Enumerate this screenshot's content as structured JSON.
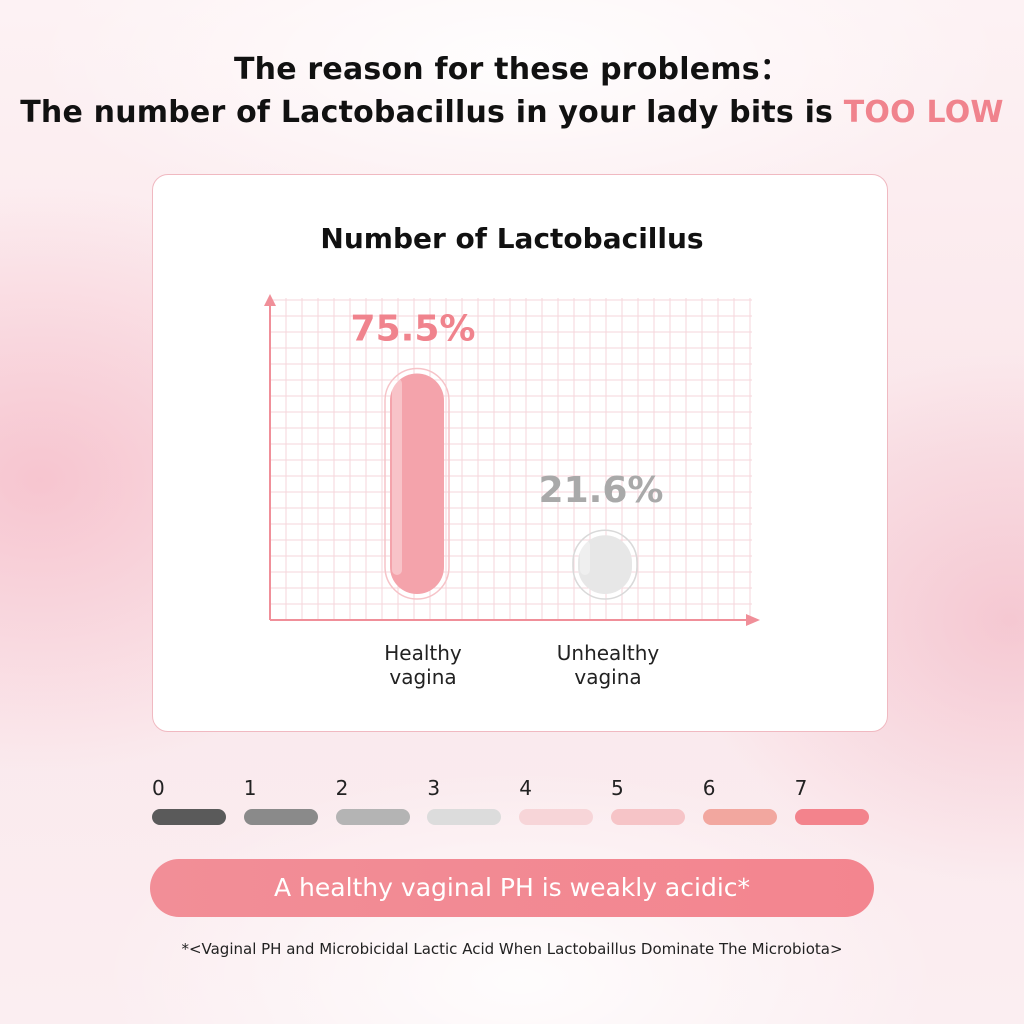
{
  "headline": {
    "line1": "The reason for these problems：",
    "line2_prefix": "The number of  Lactobacillus in your lady bits is ",
    "line2_accent": "TOO LOW"
  },
  "chart_data": {
    "type": "bar",
    "title": "Number of  Lactobacillus",
    "categories": [
      "Healthy\nvagina",
      "Unhealthy\nvagina"
    ],
    "values": [
      75.5,
      21.6
    ],
    "data_labels": [
      "75.5%",
      "21.6%"
    ],
    "colors": [
      "#f4a3ab",
      "#e7e7e7"
    ],
    "label_colors": [
      "#f0838d",
      "#a9a9a9"
    ],
    "ylim": [
      0,
      100
    ],
    "grid": true,
    "xlabel": "",
    "ylabel": ""
  },
  "ph_scale": {
    "items": [
      {
        "label": "0",
        "color": "#5a5a5a"
      },
      {
        "label": "1",
        "color": "#8a8a8a"
      },
      {
        "label": "2",
        "color": "#b4b4b4"
      },
      {
        "label": "3",
        "color": "#dcdcdc"
      },
      {
        "label": "4",
        "color": "#f7d5d8"
      },
      {
        "label": "5",
        "color": "#f6c4c7"
      },
      {
        "label": "6",
        "color": "#f2a79f"
      },
      {
        "label": "7",
        "color": "#f3838c"
      }
    ]
  },
  "banner": "A healthy vaginal PH is weakly acidic*",
  "footnote": "*<Vaginal PH and Microbicidal Lactic Acid When Lactobaillus Dominate The Microbiota>"
}
